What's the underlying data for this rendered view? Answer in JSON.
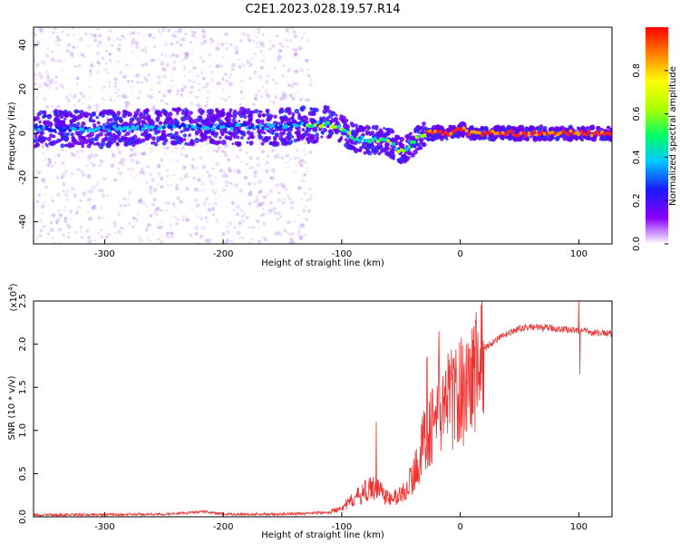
{
  "title": "C2E1.2023.028.19.57.R14",
  "chart_data": [
    {
      "type": "heatmap",
      "xlabel": "Height of straight line (km)",
      "ylabel": "Frequency (Hz)",
      "xlim": [
        -360,
        128
      ],
      "ylim": [
        -50,
        48
      ],
      "x_ticks": [
        -300,
        -200,
        -100,
        0,
        100
      ],
      "y_ticks": [
        -40,
        -20,
        0,
        20,
        40
      ],
      "ridge": {
        "x": [
          -360,
          -300,
          -250,
          -200,
          -150,
          -125,
          -110,
          -100,
          -90,
          -80,
          -70,
          -60,
          -50,
          -45,
          -40,
          -35,
          -30,
          -20,
          -10,
          -5,
          0,
          5,
          10,
          50,
          128
        ],
        "hz": [
          2,
          2,
          3,
          3,
          3,
          4,
          4,
          2,
          -2,
          -3,
          -3,
          -4,
          -8,
          -7,
          -4,
          -2,
          0,
          0,
          0,
          1,
          2,
          1,
          0,
          0,
          0
        ]
      },
      "colorbar": {
        "label": "Normalized spectral amplitude",
        "range": [
          0,
          1
        ],
        "ticks": [
          "0.0",
          "0.2",
          "0.4",
          "0.6",
          "0.8"
        ]
      }
    },
    {
      "type": "line",
      "xlabel": "Height of straight line (km)",
      "ylabel": "SNR (10 * v/v)",
      "scale_label": "(x10",
      "scale_exp": "4",
      "scale_close": ")",
      "xlim": [
        -360,
        128
      ],
      "ylim": [
        0,
        2.5
      ],
      "x_ticks": [
        -300,
        -200,
        -100,
        0,
        100
      ],
      "y_ticks": [
        "0.0",
        "0.5",
        "1.0",
        "1.5",
        "2.0",
        "2.5"
      ],
      "color": "#ee3333",
      "envelope": {
        "x": [
          -360,
          -250,
          -215,
          -200,
          -150,
          -110,
          -95,
          -80,
          -70,
          -60,
          -50,
          -40,
          -30,
          -20,
          -10,
          0,
          10,
          20,
          30,
          40,
          50,
          60,
          70,
          80,
          90,
          100,
          110,
          128
        ],
        "y": [
          0.02,
          0.03,
          0.06,
          0.03,
          0.03,
          0.05,
          0.15,
          0.3,
          0.35,
          0.2,
          0.25,
          0.45,
          0.9,
          1.2,
          1.35,
          1.45,
          1.6,
          1.95,
          2.05,
          2.12,
          2.18,
          2.2,
          2.19,
          2.18,
          2.17,
          2.16,
          2.14,
          2.12
        ]
      },
      "spikes": [
        {
          "x": -71,
          "y": 1.1
        },
        {
          "x": -28,
          "y": 1.85
        },
        {
          "x": -18,
          "y": 2.15
        },
        {
          "x": -7,
          "y": 1.65
        },
        {
          "x": 100,
          "y": 2.5
        },
        {
          "x": 101,
          "y": 1.65
        }
      ]
    }
  ]
}
